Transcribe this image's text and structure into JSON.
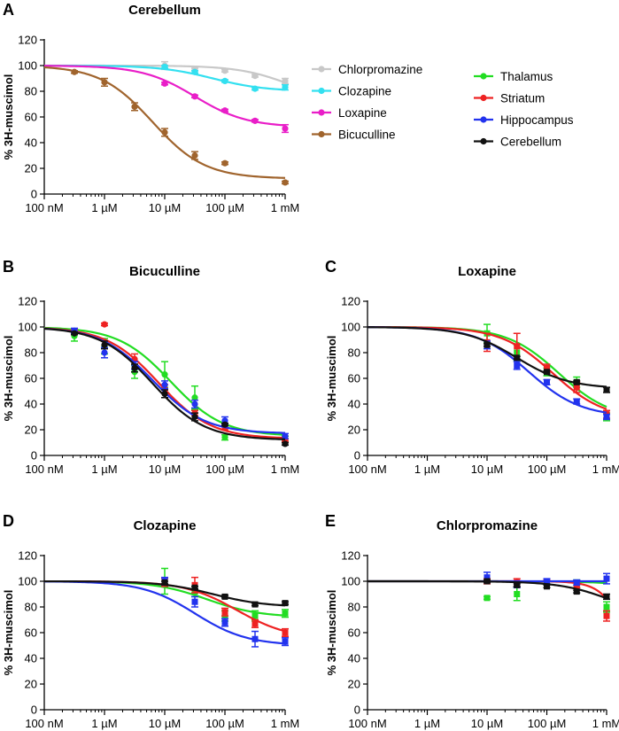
{
  "figure": {
    "x_ticks": [
      "100 nM",
      "1 µM",
      "10 µM",
      "100 µM",
      "1 mM"
    ],
    "y_ticks": [
      "0",
      "20",
      "40",
      "60",
      "80",
      "100",
      "120"
    ],
    "ylabel": "% 3H-muscimol",
    "colors": {
      "Chlorpromazine": "#c8c8c8",
      "Clozapine": "#33e0f0",
      "Loxapine": "#e91ec8",
      "Bicuculline": "#a0642d",
      "Thalamus": "#22dd22",
      "Striatum": "#ee2222",
      "Hippocampus": "#2233ee",
      "Cerebellum": "#111111"
    }
  },
  "chart_data": [
    {
      "panel_letter": "A",
      "type": "scatter",
      "title": "Cerebellum",
      "xlabel": "",
      "ylabel": "% 3H-muscimol",
      "xscale": "log",
      "xlim_log10_M": [
        -7,
        -3
      ],
      "ylim": [
        0,
        120
      ],
      "legend": [
        "Chlorpromazine",
        "Clozapine",
        "Loxapine",
        "Bicuculline"
      ],
      "series": [
        {
          "name": "Chlorpromazine",
          "x": [
            -5,
            -4.5,
            -4,
            -3.5,
            -3
          ],
          "y": [
            100,
            97,
            96,
            92,
            88
          ],
          "err": [
            3,
            1,
            1,
            1,
            2
          ],
          "marker": "circle",
          "fit": {
            "top": 100,
            "bottom": 70,
            "logEC50": -2.9
          }
        },
        {
          "name": "Clozapine",
          "x": [
            -5,
            -4.5,
            -4,
            -3.5,
            -3
          ],
          "y": [
            99,
            95,
            88,
            82,
            83
          ],
          "err": [
            1,
            1,
            1,
            1,
            2
          ],
          "marker": "circle",
          "fit": {
            "top": 100,
            "bottom": 80,
            "logEC50": -4.2
          }
        },
        {
          "name": "Loxapine",
          "x": [
            -5,
            -4.5,
            -4,
            -3.5,
            -3
          ],
          "y": [
            86,
            76,
            65,
            57,
            51
          ],
          "err": [
            1,
            1,
            1,
            1,
            3
          ],
          "marker": "circle",
          "fit": {
            "top": 100,
            "bottom": 52,
            "logEC50": -4.5
          }
        },
        {
          "name": "Bicuculline",
          "x": [
            -6.5,
            -6,
            -5.5,
            -5,
            -4.5,
            -4,
            -3
          ],
          "y": [
            95,
            87,
            68,
            48,
            30,
            24,
            9
          ],
          "err": [
            1,
            3,
            3,
            3,
            3,
            1,
            1
          ],
          "marker": "circle",
          "fit": {
            "top": 100,
            "bottom": 12,
            "logEC50": -5.2
          }
        }
      ]
    },
    {
      "panel_letter": "",
      "type": "legend",
      "entries": [
        "Thalamus",
        "Striatum",
        "Hippocampus",
        "Cerebellum"
      ]
    },
    {
      "panel_letter": "B",
      "type": "scatter",
      "title": "Bicuculline",
      "xlabel": "",
      "ylabel": "% 3H-muscimol",
      "xscale": "log",
      "xlim_log10_M": [
        -7,
        -3
      ],
      "ylim": [
        0,
        120
      ],
      "series": [
        {
          "name": "Thalamus",
          "x": [
            -6.5,
            -6,
            -5.5,
            -5,
            -4.5,
            -4,
            -3
          ],
          "y": [
            93,
            85,
            65,
            63,
            45,
            14,
            13
          ],
          "err": [
            4,
            6,
            5,
            10,
            9,
            2,
            2
          ],
          "marker": "circle",
          "fit": {
            "top": 100,
            "bottom": 15,
            "logEC50": -4.9
          }
        },
        {
          "name": "Striatum",
          "x": [
            -6.5,
            -6,
            -5.5,
            -5,
            -4.5,
            -4,
            -3
          ],
          "y": [
            96,
            102,
            75,
            52,
            33,
            22,
            12
          ],
          "err": [
            2,
            1,
            4,
            3,
            2,
            2,
            1
          ],
          "marker": "circle",
          "fit": {
            "top": 100,
            "bottom": 13,
            "logEC50": -5.1
          }
        },
        {
          "name": "Hippocampus",
          "x": [
            -6.5,
            -6,
            -5.5,
            -5,
            -4.5,
            -4,
            -3
          ],
          "y": [
            97,
            80,
            70,
            55,
            40,
            27,
            15
          ],
          "err": [
            2,
            4,
            3,
            3,
            3,
            3,
            2
          ],
          "marker": "circle",
          "fit": {
            "top": 100,
            "bottom": 17,
            "logEC50": -5.2
          }
        },
        {
          "name": "Cerebellum",
          "x": [
            -6.5,
            -6,
            -5.5,
            -5,
            -4.5,
            -4,
            -3
          ],
          "y": [
            95,
            86,
            68,
            48,
            30,
            24,
            9
          ],
          "err": [
            1,
            3,
            3,
            3,
            3,
            1,
            1
          ],
          "marker": "circle",
          "fit": {
            "top": 100,
            "bottom": 12,
            "logEC50": -5.2
          }
        }
      ]
    },
    {
      "panel_letter": "C",
      "type": "scatter",
      "title": "Loxapine",
      "xlabel": "",
      "ylabel": "% 3H-muscimol",
      "xscale": "log",
      "xlim_log10_M": [
        -7,
        -3
      ],
      "ylim": [
        0,
        120
      ],
      "series": [
        {
          "name": "Thalamus",
          "x": [
            -5,
            -4.5,
            -4,
            -3.5,
            -3
          ],
          "y": [
            95,
            80,
            65,
            57,
            30
          ],
          "err": [
            7,
            6,
            3,
            4,
            3
          ],
          "marker": "square",
          "fit": {
            "top": 100,
            "bottom": 28,
            "logEC50": -3.8
          }
        },
        {
          "name": "Striatum",
          "x": [
            -5,
            -4.5,
            -4,
            -3.5,
            -3
          ],
          "y": [
            88,
            85,
            68,
            53,
            32
          ],
          "err": [
            7,
            10,
            3,
            4,
            3
          ],
          "marker": "square",
          "fit": {
            "top": 100,
            "bottom": 28,
            "logEC50": -3.9
          }
        },
        {
          "name": "Hippocampus",
          "x": [
            -5,
            -4.5,
            -4,
            -3.5,
            -3
          ],
          "y": [
            86,
            70,
            57,
            42,
            30
          ],
          "err": [
            3,
            3,
            2,
            2,
            2
          ],
          "marker": "square",
          "fit": {
            "top": 100,
            "bottom": 30,
            "logEC50": -4.3
          }
        },
        {
          "name": "Cerebellum",
          "x": [
            -5,
            -4.5,
            -4,
            -3.5,
            -3
          ],
          "y": [
            86,
            76,
            65,
            57,
            51
          ],
          "err": [
            1,
            1,
            1,
            1,
            2
          ],
          "marker": "square",
          "fit": {
            "top": 100,
            "bottom": 52,
            "logEC50": -4.5
          }
        }
      ]
    },
    {
      "panel_letter": "D",
      "type": "scatter",
      "title": "Clozapine",
      "xlabel": "",
      "ylabel": "% 3H-muscimol",
      "xscale": "log",
      "xlim_log10_M": [
        -7,
        -3
      ],
      "ylim": [
        0,
        120
      ],
      "series": [
        {
          "name": "Thalamus",
          "x": [
            -5,
            -4.5,
            -4,
            -3.5,
            -3
          ],
          "y": [
            100,
            92,
            73,
            73,
            75
          ],
          "err": [
            10,
            4,
            4,
            4,
            3
          ],
          "marker": "square",
          "fit": {
            "top": 100,
            "bottom": 72,
            "logEC50": -4.3
          }
        },
        {
          "name": "Striatum",
          "x": [
            -5,
            -4.5,
            -4,
            -3.5,
            -3
          ],
          "y": [
            99,
            97,
            76,
            67,
            60
          ],
          "err": [
            3,
            6,
            3,
            3,
            3
          ],
          "marker": "square",
          "fit": {
            "top": 100,
            "bottom": 55,
            "logEC50": -3.8
          }
        },
        {
          "name": "Hippocampus",
          "x": [
            -5,
            -4.5,
            -4,
            -3.5,
            -3
          ],
          "y": [
            100,
            84,
            68,
            55,
            53
          ],
          "err": [
            3,
            4,
            3,
            6,
            3
          ],
          "marker": "square",
          "fit": {
            "top": 100,
            "bottom": 50,
            "logEC50": -4.5
          }
        },
        {
          "name": "Cerebellum",
          "x": [
            -5,
            -4.5,
            -4,
            -3.5,
            -3
          ],
          "y": [
            99,
            95,
            88,
            82,
            83
          ],
          "err": [
            1,
            1,
            1,
            1,
            1
          ],
          "marker": "square",
          "fit": {
            "top": 100,
            "bottom": 80,
            "logEC50": -4.2
          }
        }
      ]
    },
    {
      "panel_letter": "E",
      "type": "scatter",
      "title": "Chlorpromazine",
      "xlabel": "",
      "ylabel": "% 3H-muscimol",
      "xscale": "log",
      "xlim_log10_M": [
        -7,
        -3
      ],
      "ylim": [
        0,
        120
      ],
      "series": [
        {
          "name": "Thalamus",
          "x": [
            -5,
            -4.5,
            -4,
            -3.5,
            -3
          ],
          "y": [
            87,
            90,
            99,
            98,
            80
          ],
          "err": [
            1,
            5,
            1,
            3,
            4
          ],
          "marker": "square",
          "fit": {
            "top": 100,
            "bottom": 0,
            "logEC50": -1.2
          }
        },
        {
          "name": "Striatum",
          "x": [
            -5,
            -4.5,
            -4,
            -3.5,
            -3
          ],
          "y": [
            100,
            99,
            99,
            97,
            73
          ],
          "err": [
            2,
            3,
            2,
            2,
            4
          ],
          "marker": "square",
          "fit": {
            "top": 100,
            "bottom": 0,
            "logEC50": -2.6,
            "hill": 2
          }
        },
        {
          "name": "Hippocampus",
          "x": [
            -5,
            -4.5,
            -4,
            -3.5,
            -3
          ],
          "y": [
            103,
            97,
            100,
            99,
            102
          ],
          "err": [
            4,
            2,
            2,
            2,
            4
          ],
          "marker": "square",
          "fit": {
            "top": 100,
            "bottom": 100,
            "logEC50": -4
          }
        },
        {
          "name": "Cerebellum",
          "x": [
            -5,
            -4.5,
            -4,
            -3.5,
            -3
          ],
          "y": [
            100,
            97,
            96,
            92,
            88
          ],
          "err": [
            1,
            1,
            1,
            1,
            2
          ],
          "marker": "square",
          "fit": {
            "top": 100,
            "bottom": 70,
            "logEC50": -2.9
          }
        }
      ]
    }
  ]
}
